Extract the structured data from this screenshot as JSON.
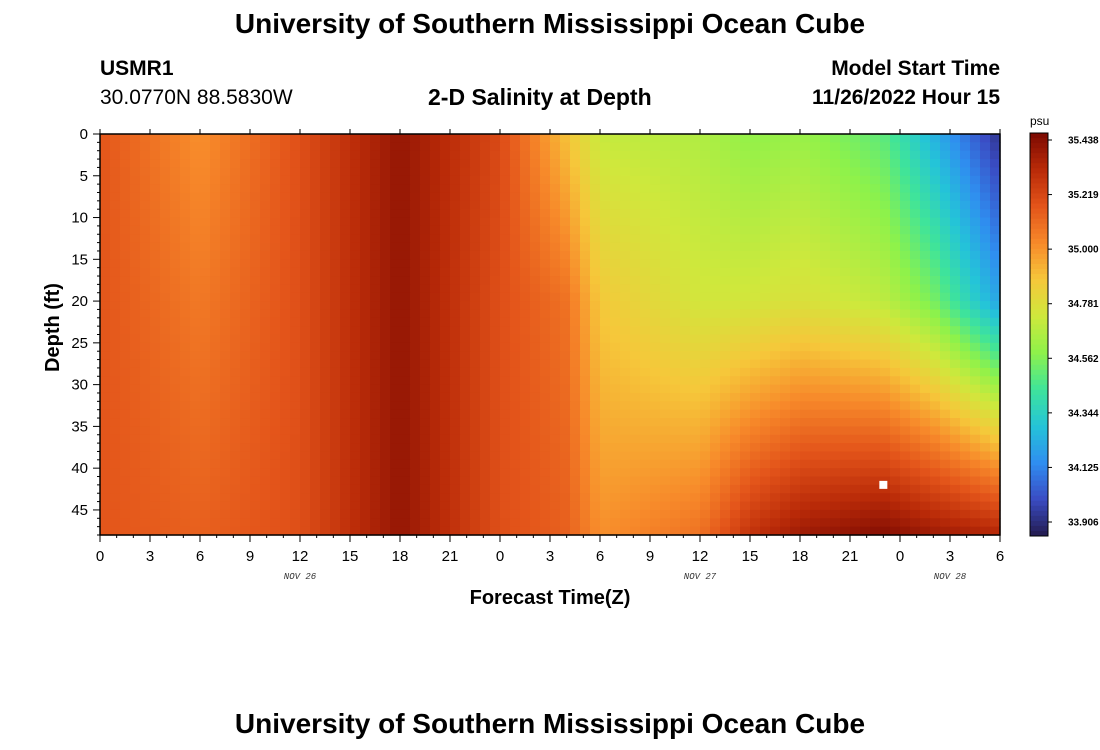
{
  "header": {
    "title": "University of Southern Mississippi Ocean Cube",
    "station_id": "USMR1",
    "coords": "30.0770N  88.5830W",
    "subtitle": "2-D Salinity at Depth",
    "start_label": "Model Start Time",
    "start_value": "11/26/2022 Hour 15"
  },
  "footer": {
    "title": "University of Southern Mississippi Ocean Cube"
  },
  "chart_data": {
    "type": "heatmap",
    "title": "2-D Salinity at Depth",
    "xlabel": "Forecast Time(Z)",
    "ylabel": "Depth (ft)",
    "x_tick_labels": [
      "0",
      "3",
      "6",
      "9",
      "12",
      "15",
      "18",
      "21",
      "0",
      "3",
      "6",
      "9",
      "12",
      "15",
      "18",
      "21",
      "0",
      "3",
      "6"
    ],
    "x_range_hours": [
      0,
      54
    ],
    "date_labels": [
      {
        "text": "NOV 26",
        "hour": 12
      },
      {
        "text": "NOV 27",
        "hour": 36
      },
      {
        "text": "NOV 28",
        "hour": 51
      }
    ],
    "y_ticks": [
      0,
      5,
      10,
      15,
      20,
      25,
      30,
      35,
      40,
      45
    ],
    "y_range": [
      0,
      48
    ],
    "y_inverted": true,
    "colorbar": {
      "unit": "psu",
      "ticks": [
        "35.438",
        "35.219",
        "35.000",
        "34.781",
        "34.562",
        "34.344",
        "34.125",
        "33.906"
      ],
      "min": 33.85,
      "max": 35.48,
      "colors": [
        "#231b4e",
        "#3a4cc4",
        "#2f8ef0",
        "#24c4d8",
        "#3fe49a",
        "#8ef24a",
        "#cfe83c",
        "#f6c73a",
        "#f7892a",
        "#e3541a",
        "#b92a08",
        "#7c0a02"
      ]
    },
    "marker": {
      "hour": 47,
      "depth": 42,
      "color": "#ffffff"
    },
    "salinity_profiles": [
      {
        "hour": 0,
        "values": [
          35.18,
          35.18,
          35.18
        ]
      },
      {
        "hour": 6,
        "values": [
          35.02,
          35.08,
          35.15
        ]
      },
      {
        "hour": 12,
        "values": [
          35.2,
          35.2,
          35.2
        ]
      },
      {
        "hour": 18,
        "values": [
          35.42,
          35.42,
          35.42
        ]
      },
      {
        "hour": 24,
        "values": [
          35.22,
          35.2,
          35.2
        ]
      },
      {
        "hour": 28,
        "values": [
          34.9,
          35.1,
          35.15
        ]
      },
      {
        "hour": 30,
        "values": [
          34.72,
          34.88,
          35.02
        ]
      },
      {
        "hour": 36,
        "values": [
          34.67,
          34.75,
          35.1
        ]
      },
      {
        "hour": 39,
        "values": [
          34.6,
          34.75,
          35.3
        ]
      },
      {
        "hour": 42,
        "values": [
          34.62,
          34.78,
          35.4
        ]
      },
      {
        "hour": 47,
        "values": [
          34.5,
          34.7,
          35.46
        ]
      },
      {
        "hour": 50,
        "values": [
          34.25,
          34.55,
          35.4
        ]
      },
      {
        "hour": 54,
        "values": [
          33.92,
          34.2,
          35.35
        ]
      }
    ],
    "profile_depths": [
      0,
      20,
      48
    ]
  }
}
